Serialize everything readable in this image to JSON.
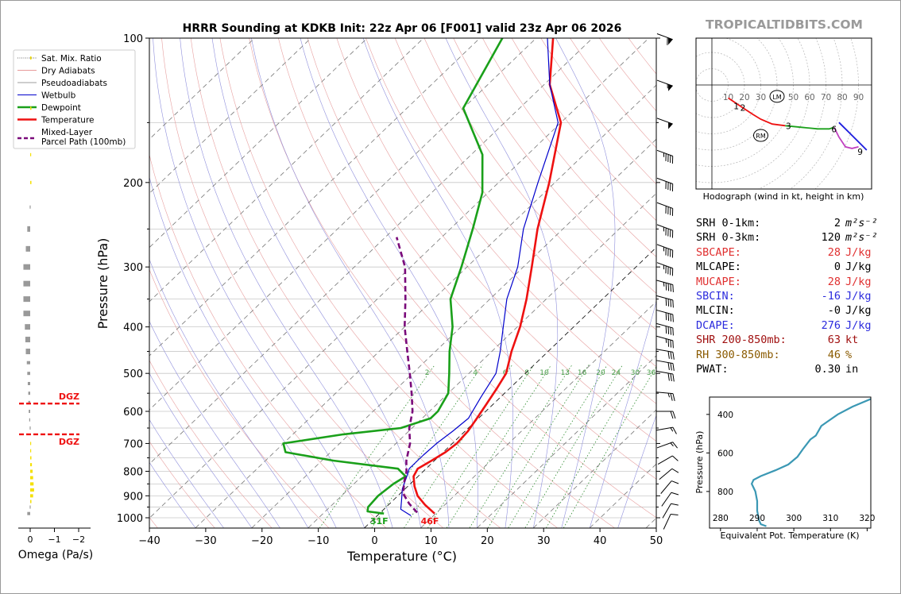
{
  "header": {
    "title": "HRRR Sounding at KDKB Init: 22z Apr 06 [F001] valid 23z Apr 06 2026",
    "brand": "TROPICALTIDBITS.COM"
  },
  "chart_data": [
    {
      "type": "line",
      "name": "skew-t",
      "xlabel": "Temperature (°C)",
      "ylabel": "Pressure (hPa)",
      "xlim": [
        -40,
        50
      ],
      "ylim": [
        1050,
        100
      ],
      "x_ticks": [
        "−40",
        "−30",
        "−20",
        "−10",
        "0",
        "10",
        "20",
        "30",
        "40",
        "50"
      ],
      "x_tick_values": [
        -40,
        -30,
        -20,
        -10,
        0,
        10,
        20,
        30,
        40,
        50
      ],
      "y_ticks": [
        "100",
        "200",
        "300",
        "400",
        "500",
        "600",
        "700",
        "800",
        "900",
        "1000"
      ],
      "y_tick_values": [
        100,
        200,
        300,
        400,
        500,
        600,
        700,
        800,
        900,
        1000
      ],
      "legend": {
        "position": "top-left",
        "entries": [
          {
            "label": "Sat. Mix. Ratio",
            "color": "#6b6b6b",
            "style": "dotted"
          },
          {
            "label": "Dry Adiabats",
            "color": "#e79a9a",
            "style": "solid"
          },
          {
            "label": "Pseudoadiabats",
            "color": "#9e9e9e",
            "style": "solid"
          },
          {
            "label": "Wetbulb",
            "color": "#0000cc",
            "style": "solid"
          },
          {
            "label": "Dewpoint",
            "color": "#1aa01a",
            "style": "solid"
          },
          {
            "label": "Temperature",
            "color": "#ee1111",
            "style": "solid"
          },
          {
            "label": "Mixed-Layer\nParcel Path (100mb)",
            "color": "#7a0a7a",
            "style": "dashed"
          }
        ]
      },
      "mixing_ratio_labels": [
        "2",
        "4",
        "6",
        "8",
        "10",
        "13",
        "16",
        "20",
        "24",
        "30",
        "36"
      ],
      "mixing_ratio_values": [
        2,
        4,
        6,
        8,
        10,
        13,
        16,
        20,
        24,
        30,
        36
      ],
      "series": [
        {
          "name": "Temperature",
          "color": "#ee1111",
          "points": [
            [
              9.8,
              980
            ],
            [
              6.5,
              940
            ],
            [
              3.5,
              900
            ],
            [
              1.2,
              860
            ],
            [
              -0.8,
              820
            ],
            [
              -1.5,
              790
            ],
            [
              -0.5,
              760
            ],
            [
              0.4,
              730
            ],
            [
              0.8,
              700
            ],
            [
              0.5,
              660
            ],
            [
              -0.3,
              620
            ],
            [
              -1.2,
              580
            ],
            [
              -2.2,
              540
            ],
            [
              -3.4,
              500
            ],
            [
              -6.5,
              450
            ],
            [
              -9.5,
              400
            ],
            [
              -13.5,
              350
            ],
            [
              -18.5,
              300
            ],
            [
              -24.5,
              250
            ],
            [
              -31,
              200
            ],
            [
              -40,
              150
            ],
            [
              -49,
              125
            ],
            [
              -57,
              100
            ]
          ]
        },
        {
          "name": "Dewpoint",
          "color": "#1aa01a",
          "points": [
            [
              0.8,
              980
            ],
            [
              -2.5,
              970
            ],
            [
              -3.2,
              950
            ],
            [
              -3.5,
              900
            ],
            [
              -3,
              850
            ],
            [
              -2.2,
              820
            ],
            [
              -5,
              790
            ],
            [
              -18,
              760
            ],
            [
              -28,
              730
            ],
            [
              -30,
              700
            ],
            [
              -21,
              670
            ],
            [
              -12,
              650
            ],
            [
              -8.5,
              620
            ],
            [
              -8.5,
              600
            ],
            [
              -10,
              550
            ],
            [
              -13.5,
              500
            ],
            [
              -17.5,
              450
            ],
            [
              -21.5,
              400
            ],
            [
              -27,
              350
            ],
            [
              -31,
              300
            ],
            [
              -36,
              250
            ],
            [
              -41,
              210
            ],
            [
              -48,
              175
            ],
            [
              -60,
              140
            ],
            [
              -66,
              100
            ]
          ]
        },
        {
          "name": "Wetbulb",
          "color": "#0000cc",
          "points": [
            [
              6,
              990
            ],
            [
              3,
              960
            ],
            [
              1.5,
              920
            ],
            [
              -0.5,
              870
            ],
            [
              -2,
              820
            ],
            [
              -3,
              790
            ],
            [
              -3,
              760
            ],
            [
              -3,
              740
            ],
            [
              -2.8,
              700
            ],
            [
              -2.2,
              660
            ],
            [
              -1.8,
              620
            ],
            [
              -3.5,
              560
            ],
            [
              -5.2,
              500
            ],
            [
              -8.5,
              450
            ],
            [
              -12.5,
              400
            ],
            [
              -17,
              350
            ],
            [
              -21,
              300
            ],
            [
              -27,
              250
            ],
            [
              -33,
              200
            ],
            [
              -40.5,
              150
            ],
            [
              -49,
              125
            ],
            [
              -58,
              100
            ]
          ]
        },
        {
          "name": "Mixed-Layer Parcel Path (100mb)",
          "color": "#7a0a7a",
          "dashed": true,
          "points": [
            [
              6.5,
              975
            ],
            [
              3.5,
              935
            ],
            [
              0.5,
              890
            ],
            [
              -1.5,
              840
            ],
            [
              -3,
              800
            ],
            [
              -5,
              760
            ],
            [
              -7.5,
              700
            ],
            [
              -10.5,
              650
            ],
            [
              -13,
              600
            ],
            [
              -16.5,
              550
            ],
            [
              -20.5,
              500
            ],
            [
              -25,
              450
            ],
            [
              -30,
              400
            ],
            [
              -35,
              350
            ],
            [
              -41,
              300
            ],
            [
              -48,
              260
            ]
          ]
        }
      ],
      "surface_labels": [
        {
          "text": "31F",
          "color": "#1aa01a",
          "at_t": 0.8
        },
        {
          "text": "46F",
          "color": "#ee1111",
          "at_t": 9.8
        }
      ]
    },
    {
      "type": "bar",
      "name": "omega",
      "xlabel": "Omega (Pa/s)",
      "x_ticks": [
        "0",
        "−1",
        "−2"
      ],
      "x_tick_values": [
        0,
        -1,
        -2
      ],
      "xlim": [
        0.3,
        -2.2
      ],
      "dgz": {
        "label": "DGZ",
        "top_p": 670,
        "bottom_p": 578,
        "color": "#ee1111"
      },
      "values_by_pressure": [
        [
          110,
          -0.05,
          "#f4e000"
        ],
        [
          140,
          -0.05,
          "#f4e000"
        ],
        [
          175,
          -0.03,
          "#f4e000"
        ],
        [
          200,
          -0.05,
          "#f4e000"
        ],
        [
          225,
          0.02,
          "#999999"
        ],
        [
          250,
          0.12,
          "#999999"
        ],
        [
          275,
          0.18,
          "#999999"
        ],
        [
          300,
          0.28,
          "#999999"
        ],
        [
          325,
          0.28,
          "#999999"
        ],
        [
          350,
          0.28,
          "#999999"
        ],
        [
          375,
          0.28,
          "#999999"
        ],
        [
          400,
          0.22,
          "#999999"
        ],
        [
          425,
          0.2,
          "#999999"
        ],
        [
          450,
          0.18,
          "#999999"
        ],
        [
          475,
          0.14,
          "#999999"
        ],
        [
          500,
          0.12,
          "#999999"
        ],
        [
          525,
          0.1,
          "#999999"
        ],
        [
          550,
          0.08,
          "#999999"
        ],
        [
          575,
          0.08,
          "#999999"
        ],
        [
          600,
          0.06,
          "#999999"
        ],
        [
          625,
          0.04,
          "#999999"
        ],
        [
          650,
          0.02,
          "#999999"
        ],
        [
          700,
          -0.02,
          "#f4e000"
        ],
        [
          725,
          -0.03,
          "#f4e000"
        ],
        [
          750,
          -0.05,
          "#f4e000"
        ],
        [
          775,
          -0.07,
          "#f4e000"
        ],
        [
          800,
          -0.1,
          "#f4e000"
        ],
        [
          825,
          -0.12,
          "#f4e000"
        ],
        [
          850,
          -0.14,
          "#f4e000"
        ],
        [
          875,
          -0.16,
          "#f4e000"
        ],
        [
          900,
          -0.12,
          "#f4e000"
        ],
        [
          925,
          -0.05,
          "#f4e000"
        ],
        [
          950,
          0.02,
          "#999999"
        ],
        [
          980,
          0.12,
          "#999999"
        ]
      ]
    },
    {
      "type": "line",
      "name": "hodograph",
      "caption": "Hodograph (wind in kt, height in km)",
      "ring_labels": [
        "10",
        "20",
        "30",
        "40",
        "50",
        "60",
        "70",
        "80",
        "90"
      ],
      "ring_values": [
        10,
        20,
        30,
        40,
        50,
        60,
        70,
        80,
        90
      ],
      "markers": [
        {
          "label": "LM",
          "u": 40,
          "v": -7
        },
        {
          "label": "RM",
          "u": 30,
          "v": -31
        }
      ],
      "segments": [
        {
          "color": "#ee1111",
          "points": [
            [
              10,
              -8
            ],
            [
              16,
              -12
            ],
            [
              19,
              -14
            ],
            [
              25,
              -18
            ],
            [
              30,
              -21
            ],
            [
              37,
              -24
            ],
            [
              45,
              -25
            ]
          ]
        },
        {
          "color": "#1aa01a",
          "points": [
            [
              45,
              -25
            ],
            [
              55,
              -26
            ],
            [
              65,
              -27
            ],
            [
              72,
              -27
            ],
            [
              75,
              -26
            ]
          ]
        },
        {
          "color": "#1b1bdd",
          "points": [
            [
              78,
              -23
            ],
            [
              85,
              -30
            ],
            [
              92,
              -37
            ],
            [
              95,
              -40
            ]
          ]
        },
        {
          "color": "#c040c0",
          "points": [
            [
              75,
              -26
            ],
            [
              78,
              -32
            ],
            [
              82,
              -38
            ],
            [
              86,
              -39
            ],
            [
              90,
              -38
            ]
          ]
        }
      ],
      "height_labels": [
        {
          "text": "1",
          "u": 15,
          "v": -13
        },
        {
          "text": "2",
          "u": 19,
          "v": -14
        },
        {
          "text": "3",
          "u": 47,
          "v": -25
        },
        {
          "text": "6",
          "u": 75,
          "v": -27
        },
        {
          "text": "9",
          "u": 91,
          "v": -41
        }
      ]
    },
    {
      "type": "line",
      "name": "theta-e",
      "xlabel": "Equivalent Pot. Temperature (K)",
      "ylabel": "Pressure (hPa)",
      "x_ticks": [
        "280",
        "290",
        "300",
        "310",
        "320"
      ],
      "x_tick_values": [
        280,
        290,
        300,
        310,
        320
      ],
      "y_ticks": [
        "400",
        "600",
        "800"
      ],
      "y_tick_values": [
        400,
        600,
        800
      ],
      "xlim": [
        277,
        321
      ],
      "ylim": [
        990,
        310
      ],
      "series": [
        {
          "name": "theta-e",
          "color": "#3b98b4",
          "points": [
            [
              292.5,
              980
            ],
            [
              291,
              970
            ],
            [
              290.5,
              950
            ],
            [
              290,
              900
            ],
            [
              290,
              850
            ],
            [
              289.5,
              800
            ],
            [
              288.5,
              760
            ],
            [
              289,
              740
            ],
            [
              291,
              720
            ],
            [
              295,
              690
            ],
            [
              298.5,
              660
            ],
            [
              301,
              620
            ],
            [
              302.5,
              580
            ],
            [
              304.5,
              530
            ],
            [
              306,
              510
            ],
            [
              307.5,
              460
            ],
            [
              309,
              440
            ],
            [
              312,
              400
            ],
            [
              316,
              360
            ],
            [
              321,
              320
            ]
          ]
        }
      ]
    }
  ],
  "wind_barbs": {
    "levels": [
      100,
      125,
      150,
      175,
      200,
      225,
      250,
      275,
      300,
      325,
      350,
      375,
      400,
      425,
      450,
      475,
      500,
      550,
      600,
      650,
      700,
      750,
      800,
      850,
      900,
      950,
      1000
    ],
    "speeds_kt": [
      60,
      55,
      50,
      45,
      40,
      40,
      45,
      45,
      45,
      45,
      40,
      40,
      40,
      35,
      30,
      30,
      30,
      25,
      20,
      15,
      15,
      10,
      10,
      10,
      10,
      10,
      10
    ],
    "dirs_deg": [
      290,
      290,
      290,
      290,
      290,
      290,
      290,
      290,
      290,
      285,
      285,
      285,
      285,
      285,
      280,
      280,
      280,
      275,
      270,
      260,
      250,
      240,
      230,
      220,
      215,
      210,
      205
    ]
  },
  "params": [
    {
      "label": "SRH 0-1km:",
      "value": "2",
      "unit": "m²s⁻²",
      "color": "#000000"
    },
    {
      "label": "SRH 0-3km:",
      "value": "120",
      "unit": "m²s⁻²",
      "color": "#000000"
    },
    {
      "label": "SBCAPE:",
      "value": "28",
      "unit": "J/kg",
      "color": "#e03030"
    },
    {
      "label": "MLCAPE:",
      "value": "0",
      "unit": "J/kg",
      "color": "#000000"
    },
    {
      "label": "MUCAPE:",
      "value": "28",
      "unit": "J/kg",
      "color": "#e03030"
    },
    {
      "label": "SBCIN:",
      "value": "-16",
      "unit": "J/kg",
      "color": "#2b2bdd"
    },
    {
      "label": "MLCIN:",
      "value": "-0",
      "unit": "J/kg",
      "color": "#000000"
    },
    {
      "label": "DCAPE:",
      "value": "276",
      "unit": "J/kg",
      "color": "#2b2bdd"
    },
    {
      "label": "SHR 200-850mb:",
      "value": "63",
      "unit": "kt",
      "color": "#a01010"
    },
    {
      "label": "RH 300-850mb:",
      "value": "46",
      "unit": "%",
      "color": "#8a5a00"
    },
    {
      "label": "PWAT:",
      "value": "0.30",
      "unit": "in",
      "color": "#000000"
    }
  ]
}
